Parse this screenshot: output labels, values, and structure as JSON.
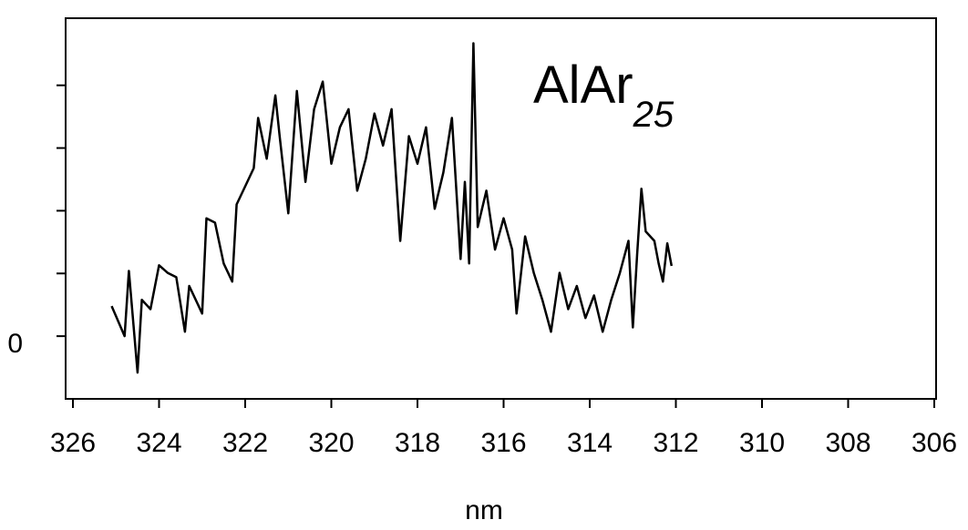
{
  "chart_data": {
    "type": "line",
    "annotation": {
      "text": "AlAr",
      "subscript": "25"
    },
    "xlabel": "nm",
    "xlim": [
      326,
      306
    ],
    "xticks": [
      326,
      324,
      322,
      320,
      318,
      316,
      314,
      312,
      310,
      308,
      306
    ],
    "ylim": [
      -1,
      5.07
    ],
    "yticks": [
      0,
      {
        "value": 1,
        "label": null
      },
      {
        "value": 2,
        "label": null
      },
      {
        "value": 3,
        "label": null
      },
      {
        "value": 4,
        "label": null
      }
    ],
    "color": "#000000",
    "x": [
      325.1,
      324.8,
      324.7,
      324.5,
      324.4,
      324.2,
      324.0,
      323.8,
      323.6,
      323.4,
      323.3,
      323.0,
      322.9,
      322.7,
      322.5,
      322.3,
      322.2,
      322.0,
      321.8,
      321.7,
      321.5,
      321.3,
      321.2,
      321.0,
      320.8,
      320.6,
      320.4,
      320.2,
      320.0,
      319.8,
      319.6,
      319.4,
      319.2,
      319.0,
      318.8,
      318.6,
      318.4,
      318.2,
      318.0,
      317.8,
      317.6,
      317.4,
      317.2,
      317.0,
      316.9,
      316.8,
      316.7,
      316.6,
      316.4,
      316.2,
      316.0,
      315.8,
      315.7,
      315.5,
      315.3,
      315.1,
      314.9,
      314.7,
      314.5,
      314.3,
      314.1,
      313.9,
      313.7,
      313.5,
      313.3,
      313.1,
      313.0,
      312.9,
      312.8,
      312.7,
      312.5,
      312.4,
      312.3,
      312.2,
      312.1
    ],
    "values": [
      0.48,
      0,
      1.04,
      -0.58,
      0.58,
      0.43,
      1.13,
      1.01,
      0.94,
      0.07,
      0.8,
      0.36,
      1.88,
      1.81,
      1.16,
      0.87,
      2.1,
      2.39,
      2.68,
      3.48,
      2.83,
      3.84,
      3.19,
      1.96,
      3.91,
      2.46,
      3.62,
      4.06,
      2.75,
      3.33,
      3.62,
      2.32,
      2.83,
      3.55,
      3.04,
      3.62,
      1.52,
      3.19,
      2.75,
      3.33,
      2.03,
      2.61,
      3.48,
      1.23,
      2.46,
      1.16,
      4.67,
      1.74,
      2.32,
      1.38,
      1.88,
      1.38,
      0.36,
      1.59,
      1.01,
      0.58,
      0.07,
      1.01,
      0.43,
      0.8,
      0.29,
      0.65,
      0.07,
      0.58,
      1.01,
      1.52,
      0.14,
      1.3,
      2.35,
      1.67,
      1.52,
      1.16,
      0.87,
      1.48,
      1.12
    ]
  }
}
